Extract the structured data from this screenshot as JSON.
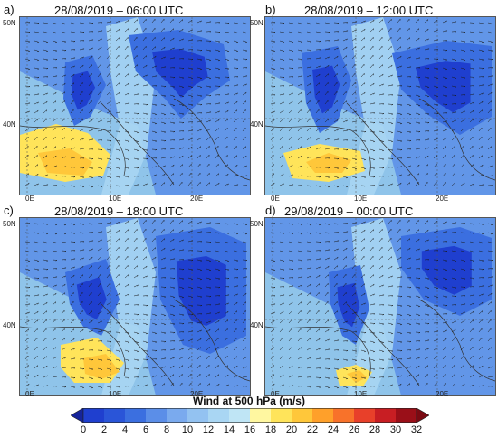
{
  "panels": [
    {
      "label": "a)",
      "title": "28/08/2019 – 06:00 UTC"
    },
    {
      "label": "b)",
      "title": "28/08/2019 – 12:00 UTC"
    },
    {
      "label": "c)",
      "title": "28/08/2019 – 18:00 UTC"
    },
    {
      "label": "d)",
      "title": "29/08/2019 – 00:00 UTC"
    }
  ],
  "axis": {
    "lat_ticks": [
      "50N",
      "40N"
    ],
    "lon_ticks": [
      "0E",
      "10E",
      "20E"
    ]
  },
  "colorbar": {
    "title": "Wind at 500 hPa (m/s)",
    "labels": [
      "0",
      "2",
      "4",
      "6",
      "8",
      "10",
      "12",
      "14",
      "16",
      "18",
      "20",
      "22",
      "24",
      "26",
      "28",
      "30",
      "32"
    ],
    "colors": [
      "#1f3fcf",
      "#2a55d8",
      "#3b6fe0",
      "#5b8ee8",
      "#7aaaee",
      "#93c2f1",
      "#a9d6f3",
      "#bfe5f5",
      "#fff7a0",
      "#ffe45a",
      "#ffc73a",
      "#ffa02a",
      "#f8722a",
      "#e8402a",
      "#c81e23",
      "#9a0f18"
    ],
    "under_color": "#16249a",
    "over_color": "#7a0a12"
  }
}
